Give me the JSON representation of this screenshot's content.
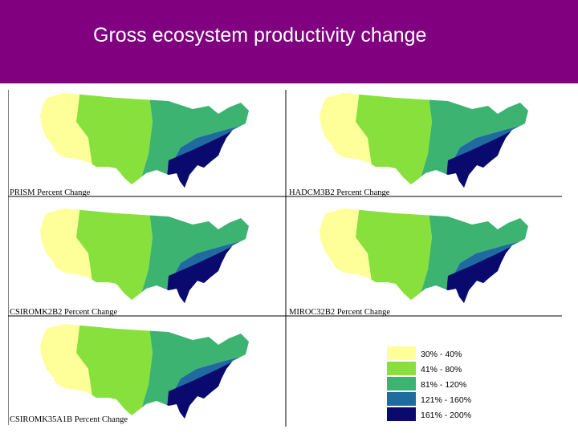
{
  "title": "Gross ecosystem productivity change",
  "maps": [
    {
      "caption": "PRISM Percent Change",
      "zones": [
        "#FFFF99",
        "#88E03C",
        "#3CB371",
        "#1F6BA0",
        "#0A0A6E"
      ]
    },
    {
      "caption": "HADCM3B2 Percent Change",
      "zones": [
        "#FFFF99",
        "#88E03C",
        "#3CB371",
        "#1F6BA0",
        "#0A0A6E"
      ]
    },
    {
      "caption": "CSIROMK2B2 Percent Change",
      "zones": [
        "#FFFF99",
        "#88E03C",
        "#3CB371",
        "#1F6BA0",
        "#0A0A6E"
      ]
    },
    {
      "caption": "MIROC32B2 Percent Change",
      "zones": [
        "#FFFF99",
        "#88E03C",
        "#3CB371",
        "#1F6BA0",
        "#0A0A6E"
      ]
    },
    {
      "caption": "CSIROMK35A1B Percent Change",
      "zones": [
        "#FFFF99",
        "#88E03C",
        "#3CB371",
        "#1F6BA0",
        "#0A0A6E"
      ]
    }
  ],
  "legend": [
    {
      "label": "30% - 40%",
      "color": "#FFFF99"
    },
    {
      "label": "41% - 80%",
      "color": "#88E03C"
    },
    {
      "label": "81% - 120%",
      "color": "#3CB371"
    },
    {
      "label": "121% - 160%",
      "color": "#1F6BA0"
    },
    {
      "label": "161% - 200%",
      "color": "#0A0A6E"
    }
  ]
}
